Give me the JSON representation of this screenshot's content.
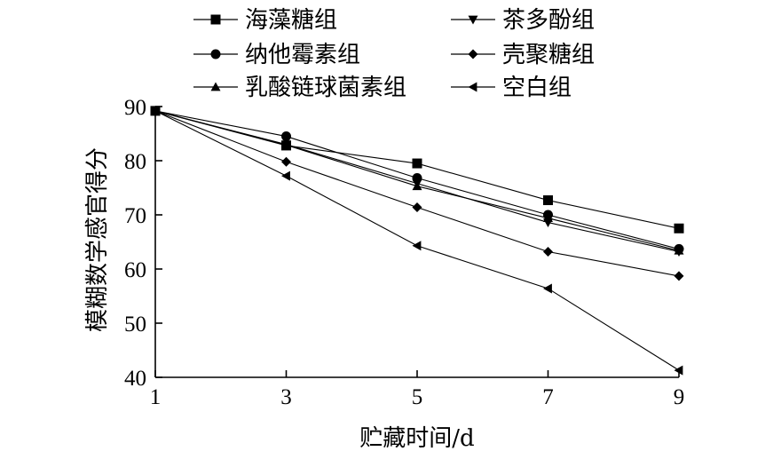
{
  "chart_data": {
    "type": "line",
    "title": "",
    "xlabel": "贮藏时间/d",
    "ylabel": "模糊数学感官得分",
    "x": [
      1,
      3,
      5,
      7,
      9
    ],
    "x_ticks": [
      "1",
      "3",
      "5",
      "7",
      "9"
    ],
    "y_ticks": [
      "40",
      "50",
      "60",
      "70",
      "80",
      "90"
    ],
    "xlim": [
      1,
      9
    ],
    "ylim": [
      40,
      90
    ],
    "grid": false,
    "legend_position": "top",
    "series": [
      {
        "name": "海藻糖组",
        "marker": "square",
        "values": [
          89.2,
          82.8,
          79.5,
          72.7,
          67.5
        ]
      },
      {
        "name": "茶多酚组",
        "marker": "triangle-down",
        "values": [
          89.2,
          83.0,
          75.8,
          68.6,
          63.2
        ]
      },
      {
        "name": "纳他霉素组",
        "marker": "circle",
        "values": [
          89.2,
          84.5,
          76.8,
          70.0,
          63.7
        ]
      },
      {
        "name": "壳聚糖组",
        "marker": "diamond",
        "values": [
          89.2,
          79.8,
          71.4,
          63.2,
          58.7
        ]
      },
      {
        "name": "乳酸链球菌素组",
        "marker": "triangle-up",
        "values": [
          89.2,
          82.9,
          75.3,
          69.4,
          63.4
        ]
      },
      {
        "name": "空白组",
        "marker": "triangle-left",
        "values": [
          89.2,
          77.2,
          64.3,
          56.4,
          41.3
        ]
      }
    ],
    "line_color": "#000000"
  }
}
